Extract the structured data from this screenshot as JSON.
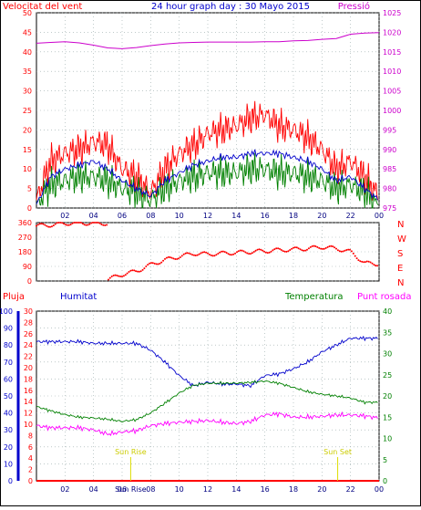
{
  "chart_data": [
    {
      "type": "line",
      "title": "24 hour graph day : 30 Mayo 2015",
      "left_axis_title": "Velocitat del vent",
      "right_axis_title": "Pressió",
      "x_ticks": [
        "02",
        "04",
        "06",
        "08",
        "10",
        "12",
        "14",
        "16",
        "18",
        "20",
        "22",
        "00"
      ],
      "left_ticks": [
        "0",
        "5",
        "10",
        "15",
        "20",
        "25",
        "30",
        "35",
        "40",
        "45",
        "50"
      ],
      "right_ticks": [
        "975",
        "980",
        "985",
        "990",
        "995",
        "1000",
        "1005",
        "1010",
        "1015",
        "1020",
        "1025"
      ],
      "ylim_left": [
        0,
        50
      ],
      "ylim_right": [
        975,
        1025
      ],
      "grid": true,
      "colors": {
        "gust": "#ff0000",
        "average": "#0000cc",
        "wind": "#008000",
        "pressure": "#cc00cc"
      },
      "pressure_series": {
        "x": [
          0,
          1,
          2,
          3,
          4,
          5,
          6,
          7,
          8,
          9,
          10,
          11,
          12,
          13,
          14,
          15,
          16,
          17,
          18,
          19,
          20,
          21,
          22,
          23,
          24
        ],
        "y": [
          1017.2,
          1017.4,
          1017.6,
          1017.3,
          1016.7,
          1016.0,
          1015.8,
          1016.1,
          1016.6,
          1017.0,
          1017.3,
          1017.4,
          1017.5,
          1017.5,
          1017.5,
          1017.5,
          1017.6,
          1017.6,
          1017.8,
          1017.9,
          1018.2,
          1018.4,
          1019.5,
          1019.8,
          1019.9
        ]
      },
      "gust_series": {
        "x": [
          0,
          1,
          2,
          3,
          4,
          5,
          6,
          7,
          8,
          9,
          10,
          11,
          12,
          13,
          14,
          15,
          16,
          17,
          18,
          19,
          20,
          21,
          22,
          23,
          24
        ],
        "y": [
          2,
          12,
          14,
          15,
          17,
          16,
          10,
          8,
          4,
          10,
          14,
          16,
          19,
          20,
          21,
          23,
          24,
          21,
          20,
          18,
          15,
          10,
          12,
          8,
          3
        ]
      },
      "average_series": {
        "x": [
          0,
          1,
          2,
          3,
          4,
          5,
          6,
          7,
          8,
          9,
          10,
          11,
          12,
          13,
          14,
          15,
          16,
          17,
          18,
          19,
          20,
          21,
          22,
          23,
          24
        ],
        "y": [
          1,
          8,
          10,
          11,
          12,
          10,
          7,
          5,
          3,
          7,
          9,
          11,
          12,
          13,
          13,
          14,
          14,
          14,
          13,
          12,
          10,
          7,
          8,
          5,
          2
        ]
      },
      "wind_series": {
        "x": [
          0,
          1,
          2,
          3,
          4,
          5,
          6,
          7,
          8,
          9,
          10,
          11,
          12,
          13,
          14,
          15,
          16,
          17,
          18,
          19,
          20,
          21,
          22,
          23,
          24
        ],
        "y": [
          1,
          6,
          7,
          8,
          8,
          7,
          5,
          4,
          2,
          5,
          7,
          8,
          9,
          9,
          9,
          10,
          10,
          9,
          9,
          8,
          7,
          5,
          6,
          4,
          1
        ]
      }
    },
    {
      "type": "scatter",
      "left_ticks": [
        "360",
        "270",
        "180",
        "90",
        "0"
      ],
      "right_ticks": [
        "N",
        "W",
        "S",
        "E",
        "N"
      ],
      "ylim": [
        0,
        360
      ],
      "grid": true,
      "color": "#ff0000",
      "direction_series": {
        "x": [
          0,
          1,
          2,
          3,
          4,
          5,
          6,
          7,
          8,
          9,
          10,
          11,
          12,
          13,
          14,
          15,
          16,
          17,
          18,
          19,
          20,
          21,
          22,
          23,
          24
        ],
        "y": [
          340,
          345,
          355,
          358,
          355,
          10,
          40,
          60,
          100,
          130,
          150,
          170,
          165,
          170,
          175,
          180,
          185,
          190,
          195,
          200,
          210,
          200,
          180,
          110,
          105
        ]
      }
    },
    {
      "type": "line",
      "left_axis_title": "Pluja",
      "left_axis_title_2": "Humitat",
      "right_axis_title": "Temperatura",
      "right_axis_title_2": "Punt rosada",
      "x_ticks": [
        "02",
        "04",
        "06",
        "08",
        "10",
        "12",
        "14",
        "16",
        "18",
        "20",
        "22",
        "00"
      ],
      "rain_ticks": [
        "0",
        "2",
        "4",
        "6",
        "8",
        "10",
        "12",
        "14",
        "16",
        "18",
        "20",
        "22",
        "24",
        "26",
        "28",
        "30"
      ],
      "humidity_ticks": [
        "0",
        "10",
        "20",
        "30",
        "40",
        "50",
        "60",
        "70",
        "80",
        "90",
        "100"
      ],
      "temp_ticks": [
        "0",
        "5",
        "10",
        "15",
        "20",
        "25",
        "30",
        "35",
        "40"
      ],
      "ylim_humidity": [
        0,
        100
      ],
      "ylim_temp": [
        0,
        40
      ],
      "grid": true,
      "annotations": [
        {
          "label": "Sun Rise",
          "x": 6.6
        },
        {
          "label": "Sun Set",
          "x": 21.1
        }
      ],
      "x_ticks_extra": {
        "label": "Sun Rise",
        "x": 6.6
      },
      "colors": {
        "rain": "#ff0000",
        "humidity": "#0000cc",
        "temperature": "#008000",
        "dew_point": "#ff00ff"
      },
      "humidity_series": {
        "x": [
          0,
          1,
          2,
          3,
          4,
          5,
          6,
          7,
          8,
          9,
          10,
          11,
          12,
          13,
          14,
          15,
          16,
          17,
          18,
          19,
          20,
          21,
          22,
          23,
          24
        ],
        "y": [
          82,
          82,
          82,
          82,
          81,
          81,
          81,
          81,
          77,
          70,
          62,
          56,
          58,
          57,
          57,
          56,
          62,
          63,
          66,
          70,
          76,
          80,
          84,
          84,
          84
        ]
      },
      "temperature_series": {
        "x": [
          0,
          1,
          2,
          3,
          4,
          5,
          6,
          7,
          8,
          9,
          10,
          11,
          12,
          13,
          14,
          15,
          16,
          17,
          18,
          19,
          20,
          21,
          22,
          23,
          24
        ],
        "y": [
          17.5,
          16.5,
          15.6,
          15.0,
          14.8,
          14.5,
          14.0,
          14.4,
          16.0,
          18.3,
          20.7,
          22.5,
          23.0,
          23.0,
          23.0,
          23.2,
          23.5,
          23.0,
          22.0,
          21.0,
          20.4,
          20.0,
          19.5,
          18.5,
          18.5
        ]
      },
      "dew_point_series": {
        "x": [
          0,
          1,
          2,
          3,
          4,
          5,
          6,
          7,
          8,
          9,
          10,
          11,
          12,
          13,
          14,
          15,
          16,
          17,
          18,
          19,
          20,
          21,
          22,
          23,
          24
        ],
        "y": [
          13.0,
          12.5,
          12.5,
          12.5,
          12.0,
          11.0,
          11.5,
          11.8,
          13.0,
          13.5,
          13.8,
          14.0,
          14.2,
          13.8,
          13.5,
          14.0,
          15.5,
          15.8,
          15.0,
          15.0,
          15.2,
          15.5,
          15.5,
          15.3,
          14.8
        ]
      },
      "rain_series": {
        "x": [
          0,
          24
        ],
        "y": [
          0,
          0
        ]
      }
    }
  ]
}
